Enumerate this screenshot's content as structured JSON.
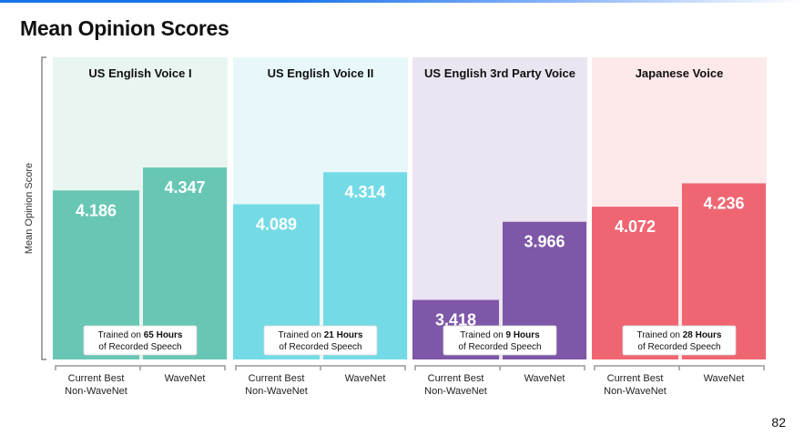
{
  "slide": {
    "title": "Mean Opinion Scores",
    "page_number": "82"
  },
  "chart_data": {
    "type": "bar",
    "ylabel": "Mean Opinion Score",
    "ylim": [
      3.0,
      4.5
    ],
    "grid": false,
    "legend": "none",
    "categories": [
      "Current Best Non-WaveNet",
      "WaveNet"
    ],
    "groups": [
      {
        "name": "US English Voice I",
        "values": [
          4.186,
          4.347
        ],
        "note_prefix": "Trained on ",
        "note_bold": "65 Hours",
        "note_line2": "of Recorded Speech",
        "bg_color": "#e9f5f1",
        "bar_colors": [
          "#68c7b4",
          "#68c7b4"
        ]
      },
      {
        "name": "US English Voice II",
        "values": [
          4.089,
          4.314
        ],
        "note_prefix": "Trained on ",
        "note_bold": "21 Hours",
        "note_line2": "of Recorded Speech",
        "bg_color": "#e8f8fa",
        "bar_colors": [
          "#74dbe6",
          "#74dbe6"
        ]
      },
      {
        "name": "US English 3rd Party Voice",
        "values": [
          3.418,
          3.966
        ],
        "note_prefix": "Trained on ",
        "note_bold": "9 Hours",
        "note_line2": "of Recorded Speech",
        "bg_color": "#ebe5f2",
        "bar_colors": [
          "#7e57a8",
          "#7e57a8"
        ]
      },
      {
        "name": "Japanese Voice",
        "values": [
          4.072,
          4.236
        ],
        "note_prefix": "Trained on ",
        "note_bold": "28 Hours",
        "note_line2": "of Recorded Speech",
        "bg_color": "#fde8ea",
        "bar_colors": [
          "#ef6672",
          "#ef6672"
        ]
      }
    ],
    "x_tick_labels": [
      [
        "Current Best",
        "Non-WaveNet"
      ],
      [
        "WaveNet"
      ]
    ]
  }
}
